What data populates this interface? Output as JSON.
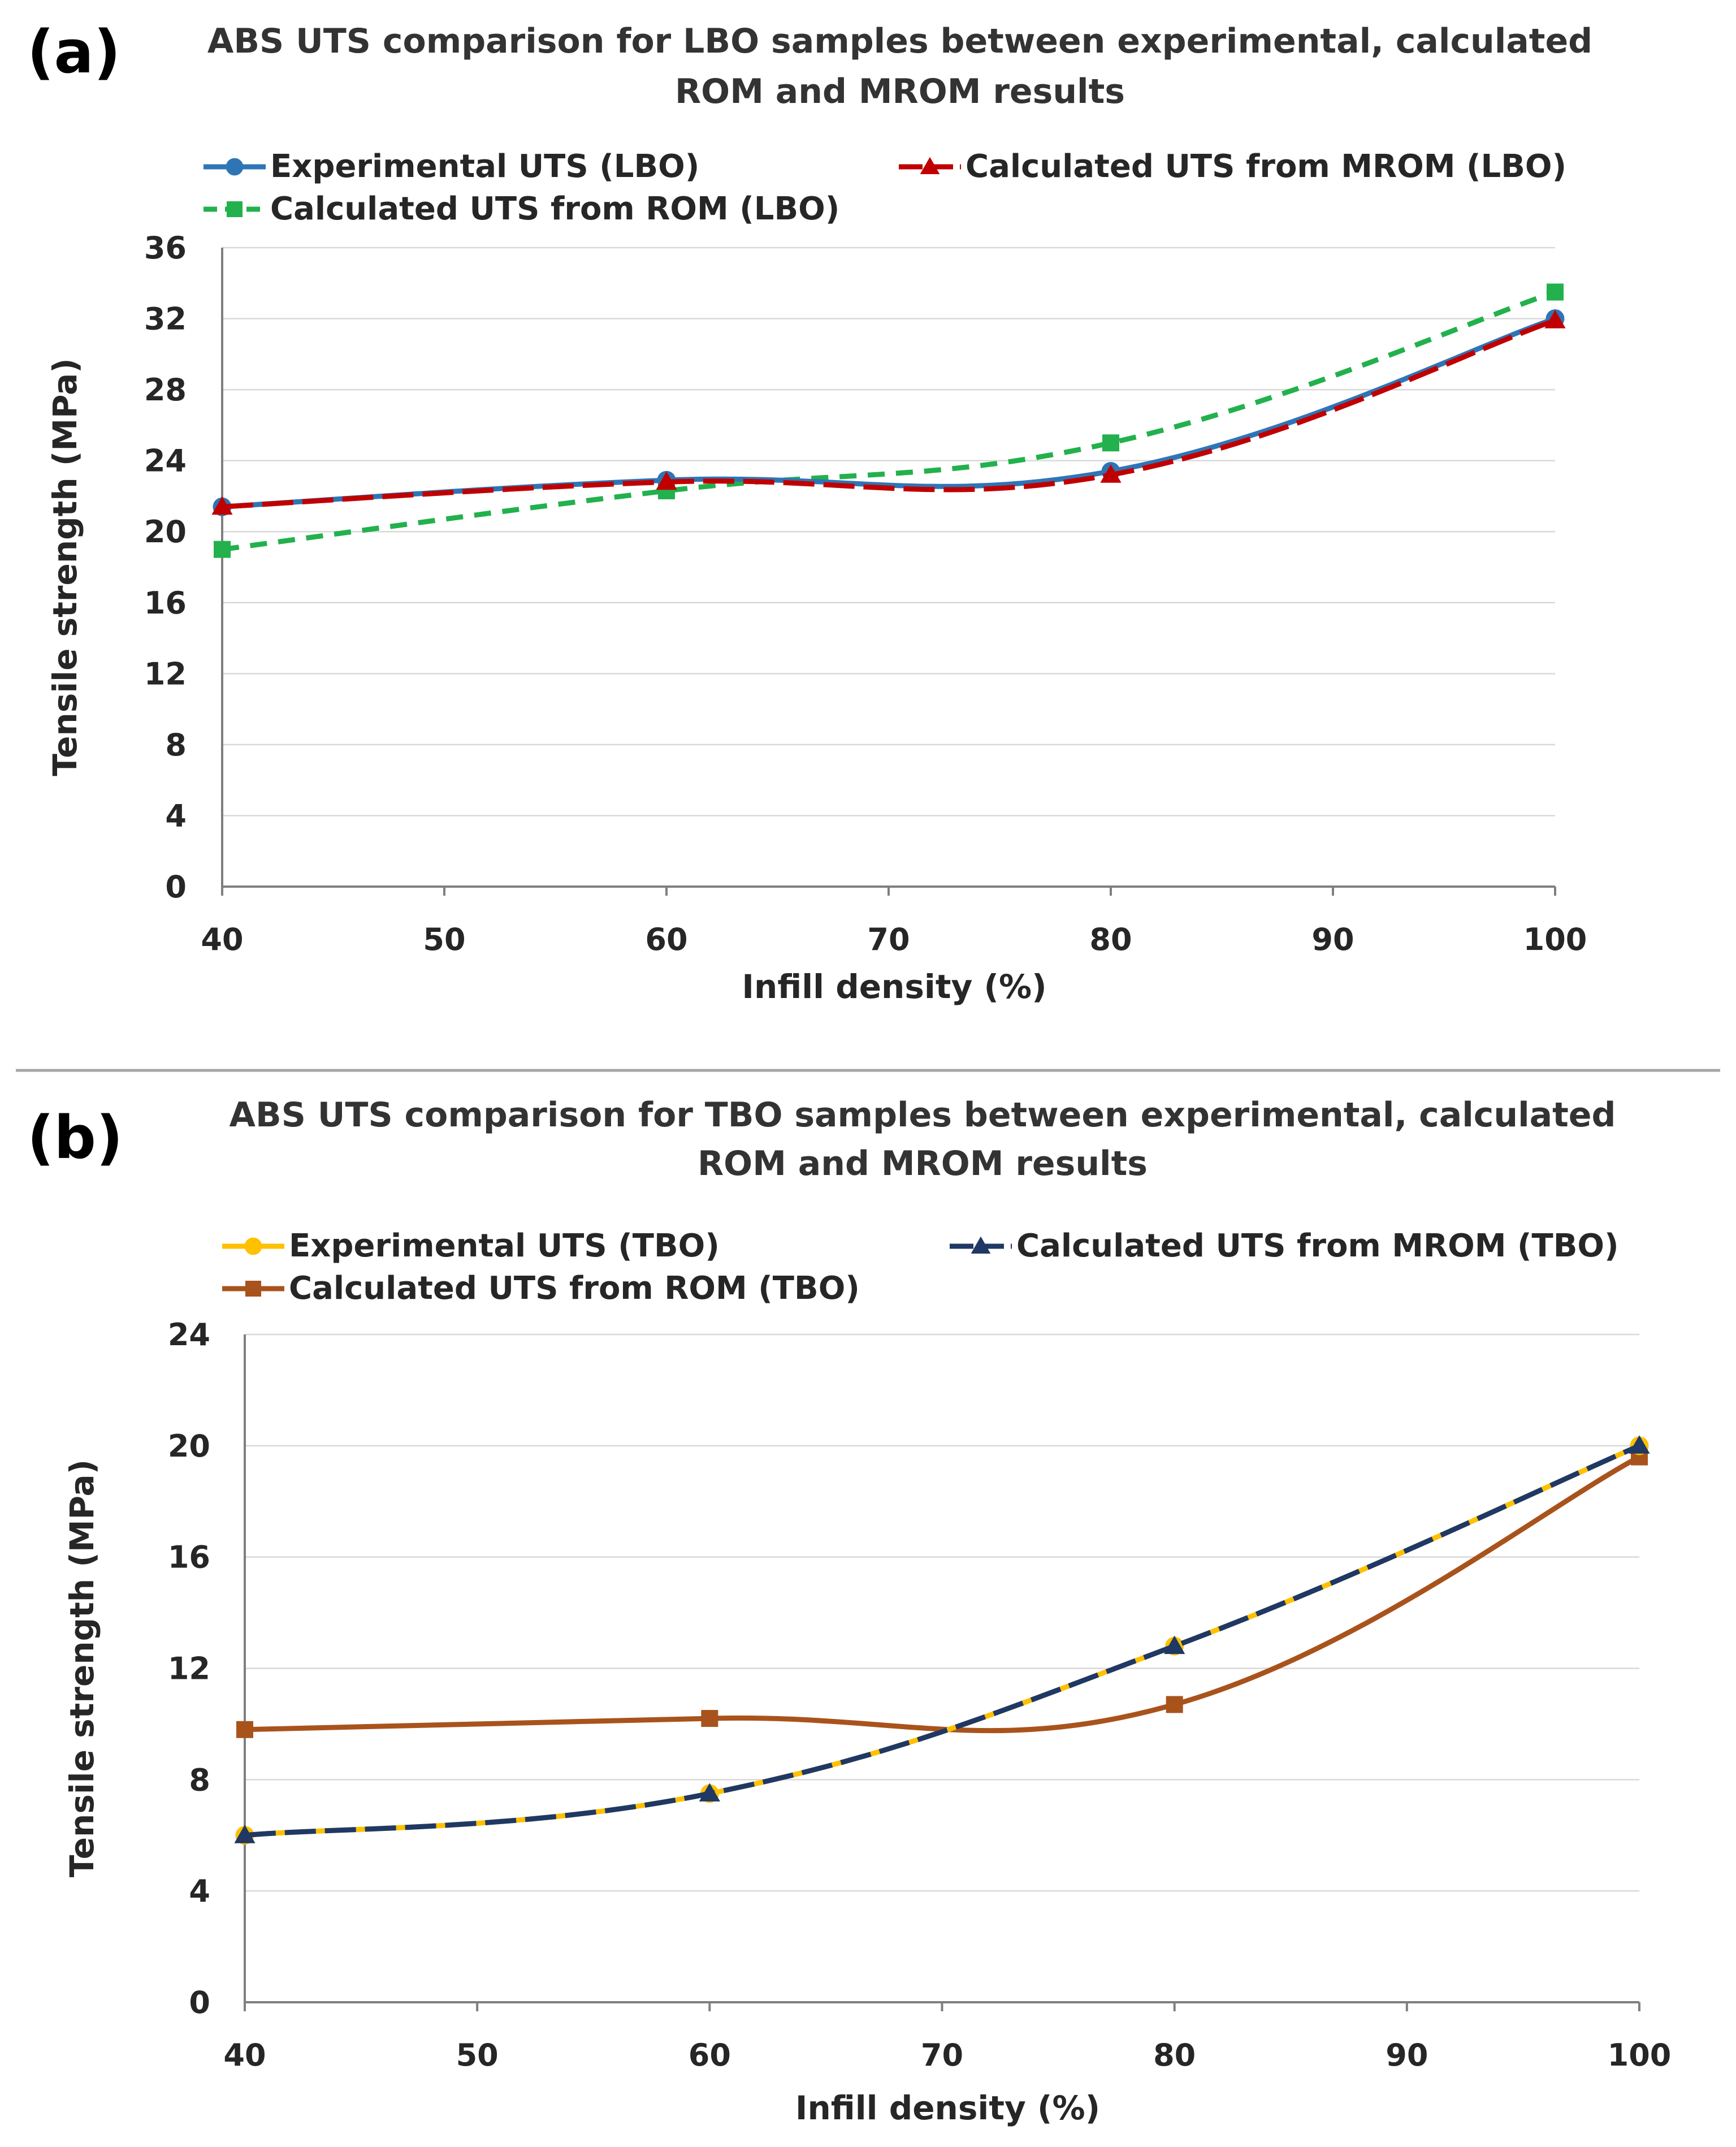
{
  "chart_data": [
    {
      "panel": "(a)",
      "type": "line",
      "title": [
        "ABS UTS comparison for LBO samples between experimental, calculated",
        "ROM and MROM results"
      ],
      "xlabel": "Infill density (%)",
      "ylabel": "Tensile strength (MPa)",
      "xlim": [
        40,
        100
      ],
      "ylim": [
        0,
        36
      ],
      "xticks": [
        40,
        50,
        60,
        70,
        80,
        90,
        100
      ],
      "yticks": [
        0,
        4,
        8,
        12,
        16,
        20,
        24,
        28,
        32,
        36
      ],
      "grid": true,
      "legend": "top",
      "series": [
        {
          "name": "Experimental UTS (LBO)",
          "color": "#2e75b6",
          "marker": "circle",
          "dash": "solid",
          "x": [
            40,
            60,
            80,
            100
          ],
          "values": [
            21.4,
            22.9,
            23.4,
            32.0
          ]
        },
        {
          "name": "Calculated UTS from MROM (LBO)",
          "color": "#c00000",
          "marker": "triangle",
          "dash": "long-dash",
          "x": [
            40,
            60,
            80,
            100
          ],
          "values": [
            21.4,
            22.8,
            23.2,
            31.9
          ]
        },
        {
          "name": "Calculated UTS from ROM (LBO)",
          "color": "#22b14c",
          "marker": "square",
          "dash": "dash",
          "x": [
            40,
            60,
            80,
            100
          ],
          "values": [
            19.0,
            22.3,
            25.0,
            33.5
          ]
        }
      ]
    },
    {
      "panel": "(b)",
      "type": "line",
      "title": [
        "ABS UTS comparison for TBO samples between experimental, calculated",
        "ROM and MROM results"
      ],
      "xlabel": "Infill density (%)",
      "ylabel": "Tensile strength (MPa)",
      "xlim": [
        40,
        100
      ],
      "ylim": [
        0,
        24
      ],
      "xticks": [
        40,
        50,
        60,
        70,
        80,
        90,
        100
      ],
      "yticks": [
        0,
        4,
        8,
        12,
        16,
        20,
        24
      ],
      "grid": true,
      "legend": "top",
      "series": [
        {
          "name": "Experimental UTS (TBO)",
          "color": "#ffc000",
          "marker": "circle",
          "dash": "solid",
          "x": [
            40,
            60,
            80,
            100
          ],
          "values": [
            6.0,
            7.5,
            12.8,
            20.0
          ]
        },
        {
          "name": "Calculated UTS from MROM (TBO)",
          "color": "#1f3864",
          "marker": "triangle",
          "dash": "long-dash",
          "x": [
            40,
            60,
            80,
            100
          ],
          "values": [
            6.0,
            7.5,
            12.8,
            20.0
          ]
        },
        {
          "name": "Calculated UTS from ROM (TBO)",
          "color": "#a9531c",
          "marker": "square",
          "dash": "solid",
          "x": [
            40,
            60,
            80,
            100
          ],
          "values": [
            9.8,
            10.2,
            10.7,
            19.6
          ]
        }
      ]
    }
  ]
}
